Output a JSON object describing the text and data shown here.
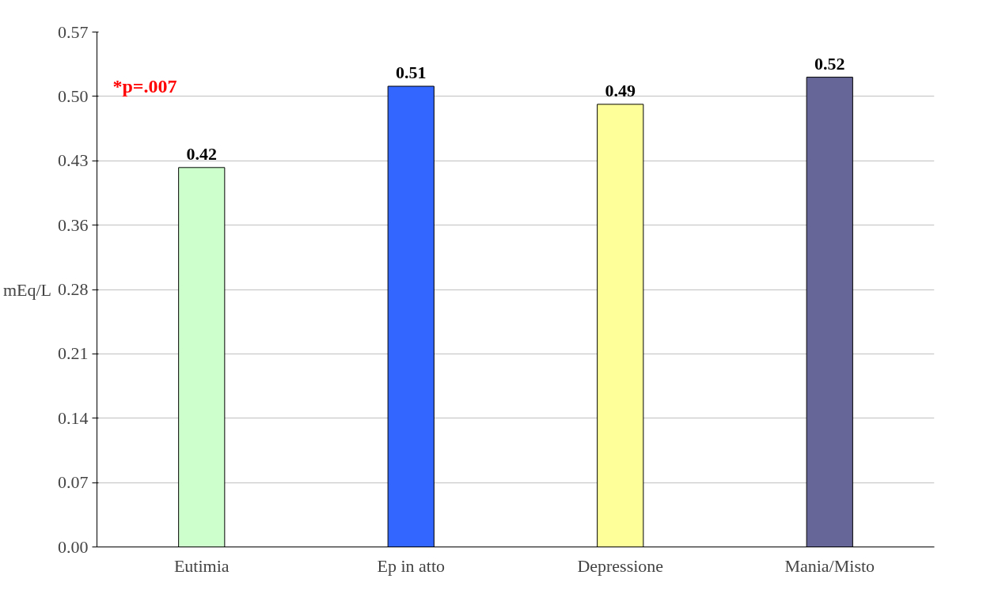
{
  "chart_data": {
    "type": "bar",
    "ylabel": "mEq/L",
    "categories": [
      "Eutimia",
      "Ep in atto",
      "Depressione",
      "Mania/Misto"
    ],
    "values": [
      0.42,
      0.51,
      0.49,
      0.52
    ],
    "colors": [
      "#ccffcc",
      "#3366ff",
      "#ffff99",
      "#666699"
    ],
    "data_labels": true,
    "ylim": [
      0,
      0.57
    ],
    "yticks": [
      {
        "value": 0,
        "label": "0.00"
      },
      {
        "value": 0.07125,
        "label": "0.07"
      },
      {
        "value": 0.1425,
        "label": "0.14"
      },
      {
        "value": 0.21375,
        "label": "0.21"
      },
      {
        "value": 0.285,
        "label": "0.28"
      },
      {
        "value": 0.35625,
        "label": "0.36"
      },
      {
        "value": 0.4275,
        "label": "0.43"
      },
      {
        "value": 0.49875,
        "label": "0.50"
      },
      {
        "value": 0.57,
        "label": "0.57"
      }
    ],
    "grid": "y",
    "annotations": [
      "*p=.007"
    ]
  }
}
